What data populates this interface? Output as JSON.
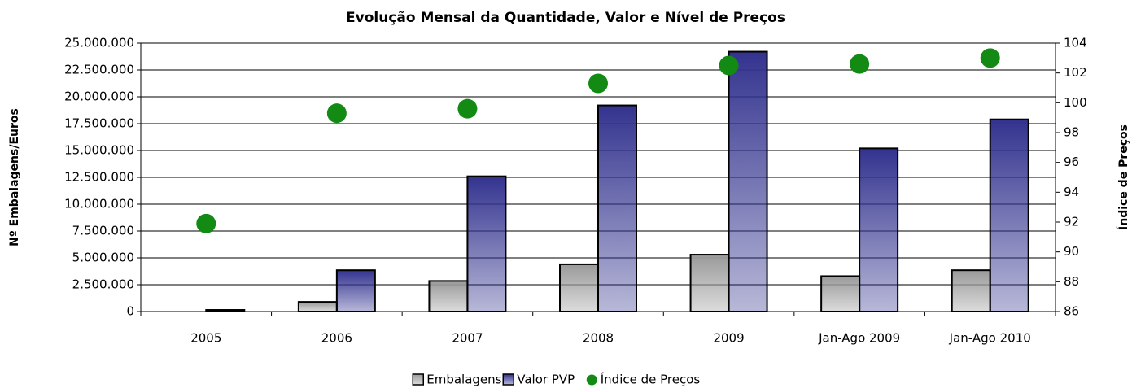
{
  "chart_data": {
    "type": "bar",
    "title": "Evolução Mensal da Quantidade, Valor e Nível de Preços",
    "y_label": "Nº Embalagens/Euros",
    "y2_label": "Índice de Preços",
    "categories": [
      "2005",
      "2006",
      "2007",
      "2008",
      "2009",
      "Jan-Ago 2009",
      "Jan-Ago 2010"
    ],
    "series": [
      {
        "name": "Embalagens",
        "type": "bar",
        "color": "#9a9a9a",
        "values": [
          0,
          900000,
          2850000,
          4400000,
          5300000,
          3300000,
          3850000
        ]
      },
      {
        "name": "Valor PVP",
        "type": "bar",
        "color": "#33338f",
        "values": [
          150000,
          3850000,
          12600000,
          19200000,
          24200000,
          15200000,
          17900000
        ]
      },
      {
        "name": "Índice de Preços",
        "type": "scatter",
        "axis": "y2",
        "color": "#138a13",
        "values": [
          91.9,
          99.3,
          99.6,
          101.3,
          102.5,
          102.6,
          103.0
        ]
      }
    ],
    "ylim": [
      0,
      25000000
    ],
    "yticks": [
      0,
      {
        "value": 2500000,
        "label": "2.500.000"
      },
      {
        "value": 5000000,
        "label": "5.000.000"
      },
      {
        "value": 7500000,
        "label": "7.500.000"
      },
      {
        "value": 10000000,
        "label": "10.000.000"
      },
      {
        "value": 12500000,
        "label": "12.500.000"
      },
      {
        "value": 15000000,
        "label": "15.000.000"
      },
      {
        "value": 17500000,
        "label": "17.500.000"
      },
      {
        "value": 20000000,
        "label": "20.000.000"
      },
      {
        "value": 22500000,
        "label": "22.500.000"
      },
      {
        "value": 25000000,
        "label": "25.000.000"
      }
    ],
    "y2lim": [
      86,
      104
    ],
    "y2ticks": [
      86,
      88,
      90,
      92,
      94,
      96,
      98,
      100,
      102,
      104
    ],
    "grid": true,
    "legend": "bottom"
  }
}
